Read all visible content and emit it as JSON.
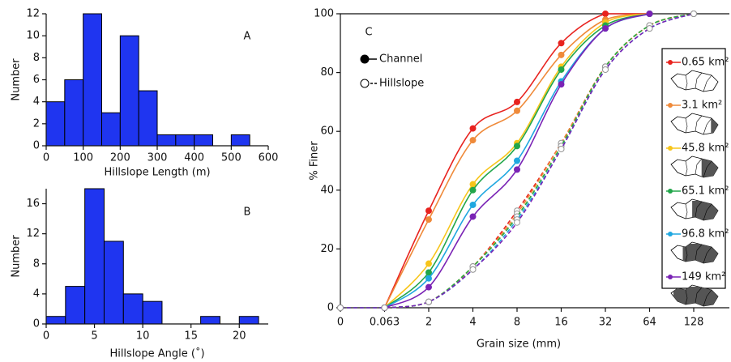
{
  "chart_data": [
    {
      "type": "histogram",
      "panel_label": "A",
      "xlabel": "Hillslope Length (m)",
      "ylabel": "Number",
      "color": "#1f35f0",
      "bins": [
        0,
        50,
        100,
        150,
        200,
        250,
        300,
        350,
        400,
        450,
        500,
        550
      ],
      "counts": [
        4,
        6,
        12,
        3,
        10,
        5,
        1,
        1,
        1,
        0,
        1
      ],
      "xlim": [
        0,
        600
      ],
      "xticks": [
        0,
        100,
        200,
        300,
        400,
        500,
        600
      ],
      "ylim": [
        0,
        12
      ],
      "yticks": [
        0,
        2,
        4,
        6,
        8,
        10,
        12
      ]
    },
    {
      "type": "histogram",
      "panel_label": "B",
      "xlabel": "Hillslope Angle (˚)",
      "ylabel": "Number",
      "color": "#1f35f0",
      "bins": [
        0,
        2,
        4,
        6,
        8,
        10,
        12,
        14,
        16,
        18,
        20,
        22
      ],
      "counts": [
        1,
        5,
        18,
        11,
        4,
        3,
        0,
        0,
        1,
        0,
        1
      ],
      "xlim": [
        0,
        23
      ],
      "xticks": [
        0,
        5,
        10,
        15,
        20
      ],
      "ylim": [
        0,
        18
      ],
      "yticks": [
        0,
        4,
        8,
        12,
        16
      ]
    },
    {
      "type": "line",
      "panel_label": "C",
      "xlabel": "Grain size (mm)",
      "ylabel": "% Finer",
      "categories": [
        "0",
        "0.063",
        "2",
        "4",
        "8",
        "16",
        "32",
        "64",
        "128"
      ],
      "ylim": [
        0,
        100
      ],
      "yticks": [
        0,
        20,
        40,
        60,
        80,
        100
      ],
      "styles": [
        {
          "name": "Channel",
          "dash": "solid",
          "marker": "filled"
        },
        {
          "name": "Hillslope",
          "dash": "dashed",
          "marker": "open"
        }
      ],
      "series": [
        {
          "name": "0.65 km²",
          "color": "#e8231f",
          "values": [
            null,
            0,
            33,
            61,
            70,
            90,
            100,
            100,
            null
          ],
          "hillslope_values": [
            0,
            0,
            2,
            14,
            33,
            56,
            82,
            96,
            100
          ]
        },
        {
          "name": "3.1 km²",
          "color": "#ef8a3a",
          "values": [
            null,
            0,
            30,
            57,
            67,
            86,
            98,
            100,
            null
          ],
          "hillslope_values": [
            0,
            0,
            2,
            14,
            32,
            56,
            82,
            96,
            100
          ]
        },
        {
          "name": "45.8 km²",
          "color": "#f7c51b",
          "values": [
            null,
            0,
            15,
            42,
            56,
            82,
            97,
            100,
            null
          ],
          "hillslope_values": [
            0,
            0,
            2,
            14,
            31,
            55,
            82,
            96,
            100
          ]
        },
        {
          "name": "65.1 km²",
          "color": "#22a64a",
          "values": [
            null,
            0,
            12,
            40,
            55,
            81,
            96,
            100,
            null
          ],
          "hillslope_values": [
            0,
            0,
            2,
            14,
            31,
            55,
            82,
            96,
            100
          ]
        },
        {
          "name": "96.8 km²",
          "color": "#1fa7e0",
          "values": [
            null,
            0,
            10,
            35,
            50,
            77,
            95,
            100,
            null
          ],
          "hillslope_values": [
            0,
            0,
            2,
            13,
            30,
            54,
            81,
            95,
            100
          ]
        },
        {
          "name": "149 km²",
          "color": "#7a23b5",
          "values": [
            null,
            0,
            7,
            31,
            47,
            76,
            95,
            100,
            null
          ],
          "hillslope_values": [
            0,
            0,
            2,
            13,
            29,
            54,
            81,
            95,
            100
          ]
        }
      ]
    }
  ]
}
